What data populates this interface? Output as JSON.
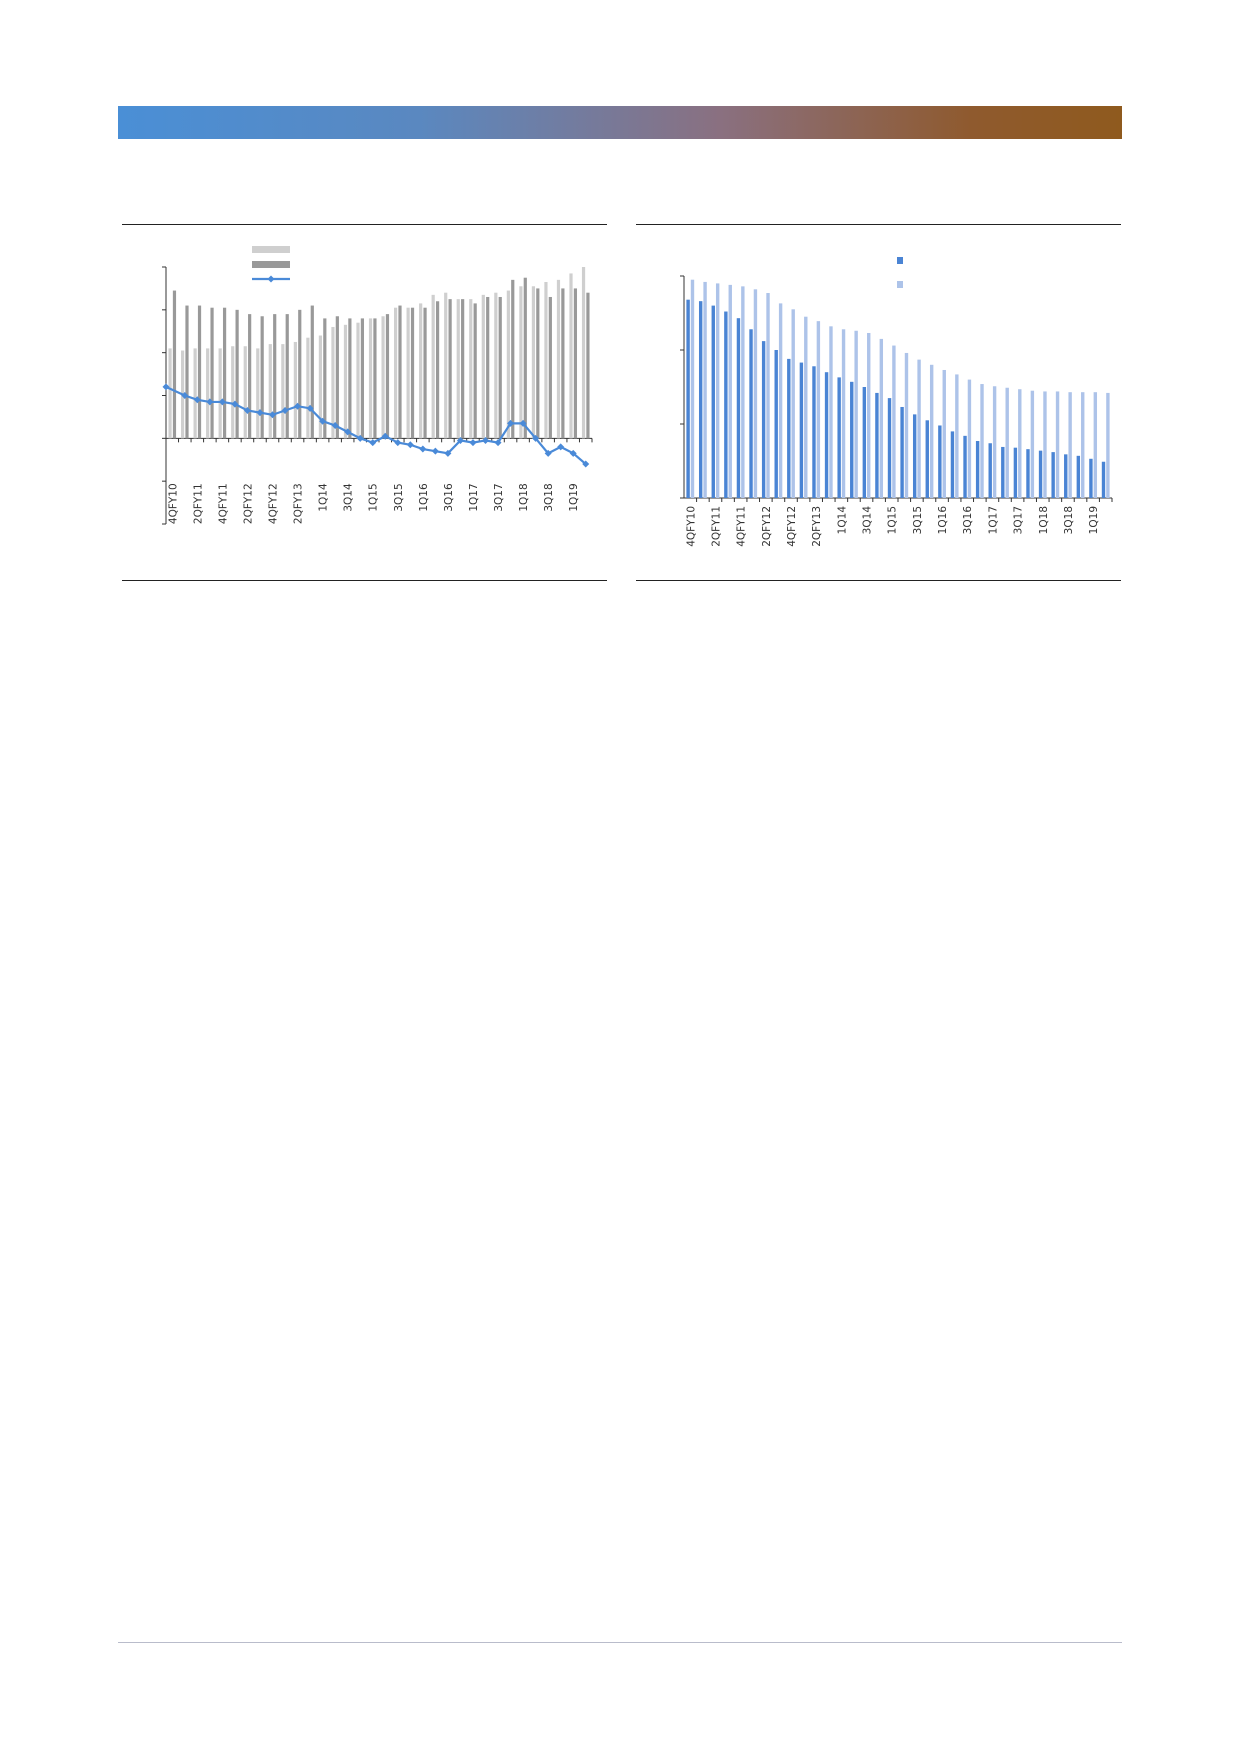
{
  "colors": {
    "band_start": "#4a8fd6",
    "band_end": "#8f5a1e",
    "light_gray": "#cfcfcf",
    "dark_gray": "#999999",
    "line_blue": "#4a8ad8",
    "dark_blue": "#4a84d4",
    "light_blue": "#adc3e9"
  },
  "chart_data": [
    {
      "type": "bar",
      "title": "",
      "xlabel": "",
      "ylabel": "",
      "legend": "top-left",
      "ylim": [
        -4,
        8
      ],
      "y_ticks": [
        -4,
        -2,
        0,
        2,
        4,
        6,
        8
      ],
      "categories": [
        "4QFY10",
        "1QFY11",
        "2QFY11",
        "3QFY11",
        "4QFY11",
        "1QFY12",
        "2QFY12",
        "3QFY12",
        "4QFY12",
        "1QFY13",
        "2QFY13",
        "3QFY13",
        "1Q14",
        "2Q14",
        "3Q14",
        "4Q14",
        "1Q15",
        "2Q15",
        "3Q15",
        "4Q15",
        "1Q16",
        "2Q16",
        "3Q16",
        "4Q16",
        "1Q17",
        "2Q17",
        "3Q17",
        "4Q17",
        "1Q18",
        "2Q18",
        "3Q18",
        "4Q18",
        "1Q19",
        "2Q19"
      ],
      "tick_labels": [
        "4QFY10",
        "",
        "2QFY11",
        "",
        "4QFY11",
        "",
        "2QFY12",
        "",
        "4QFY12",
        "",
        "2QFY13",
        "",
        "1Q14",
        "",
        "3Q14",
        "",
        "1Q15",
        "",
        "3Q15",
        "",
        "1Q16",
        "",
        "3Q16",
        "",
        "1Q17",
        "",
        "3Q17",
        "",
        "1Q18",
        "",
        "3Q18",
        "",
        "1Q19",
        ""
      ],
      "series": [
        {
          "name": "",
          "kind": "bar",
          "color": "light_gray",
          "values": [
            4.2,
            4.1,
            4.2,
            4.2,
            4.2,
            4.3,
            4.3,
            4.2,
            4.4,
            4.4,
            4.5,
            4.7,
            4.8,
            5.2,
            5.3,
            5.4,
            5.6,
            5.7,
            6.1,
            6.1,
            6.3,
            6.7,
            6.8,
            6.5,
            6.5,
            6.7,
            6.8,
            6.9,
            7.1,
            7.1,
            7.3,
            7.4,
            7.7,
            8.0
          ]
        },
        {
          "name": "",
          "kind": "bar",
          "color": "dark_gray",
          "values": [
            6.9,
            6.2,
            6.2,
            6.1,
            6.1,
            6.0,
            5.8,
            5.7,
            5.8,
            5.8,
            6.0,
            6.2,
            5.6,
            5.7,
            5.6,
            5.6,
            5.6,
            5.8,
            6.2,
            6.1,
            6.1,
            6.4,
            6.5,
            6.5,
            6.3,
            6.6,
            6.6,
            7.4,
            7.5,
            7.0,
            6.6,
            7.0,
            7.0,
            6.8
          ]
        },
        {
          "name": "",
          "kind": "line",
          "color": "line_blue",
          "values": [
            2.4,
            2.0,
            1.8,
            1.7,
            1.7,
            1.6,
            1.3,
            1.2,
            1.1,
            1.3,
            1.5,
            1.4,
            0.8,
            0.6,
            0.3,
            0.0,
            -0.2,
            0.1,
            -0.2,
            -0.3,
            -0.5,
            -0.6,
            -0.7,
            -0.1,
            -0.2,
            -0.1,
            -0.2,
            0.7,
            0.7,
            0.0,
            -0.7,
            -0.4,
            -0.7,
            -1.2
          ]
        }
      ]
    },
    {
      "type": "bar",
      "title": "",
      "xlabel": "",
      "ylabel": "",
      "legend": "top-right",
      "ylim": [
        0,
        3
      ],
      "y_ticks": [
        0,
        1,
        2,
        3
      ],
      "categories": [
        "4QFY10",
        "1QFY11",
        "2QFY11",
        "3QFY11",
        "4QFY11",
        "1QFY12",
        "2QFY12",
        "3QFY12",
        "4QFY12",
        "1QFY13",
        "2QFY13",
        "3QFY13",
        "1Q14",
        "2Q14",
        "3Q14",
        "4Q14",
        "1Q15",
        "2Q15",
        "3Q15",
        "4Q15",
        "1Q16",
        "2Q16",
        "3Q16",
        "4Q16",
        "1Q17",
        "2Q17",
        "3Q17",
        "4Q17",
        "1Q18",
        "2Q18",
        "3Q18",
        "4Q18",
        "1Q19",
        "2Q19"
      ],
      "tick_labels": [
        "4QFY10",
        "",
        "2QFY11",
        "",
        "4QFY11",
        "",
        "2QFY12",
        "",
        "4QFY12",
        "",
        "2QFY13",
        "",
        "1Q14",
        "",
        "3Q14",
        "",
        "1Q15",
        "",
        "3Q15",
        "",
        "1Q16",
        "",
        "3Q16",
        "",
        "1Q17",
        "",
        "3Q17",
        "",
        "1Q18",
        "",
        "3Q18",
        "",
        "1Q19",
        ""
      ],
      "series": [
        {
          "name": "",
          "color": "dark_blue",
          "values": [
            2.68,
            2.66,
            2.6,
            2.52,
            2.43,
            2.28,
            2.12,
            2.0,
            1.88,
            1.83,
            1.78,
            1.7,
            1.63,
            1.57,
            1.5,
            1.42,
            1.35,
            1.23,
            1.13,
            1.05,
            0.98,
            0.9,
            0.84,
            0.77,
            0.74,
            0.69,
            0.68,
            0.66,
            0.64,
            0.62,
            0.59,
            0.57,
            0.53,
            0.49
          ]
        },
        {
          "name": "",
          "color": "light_blue",
          "values": [
            2.95,
            2.92,
            2.9,
            2.88,
            2.86,
            2.82,
            2.77,
            2.63,
            2.55,
            2.45,
            2.39,
            2.32,
            2.28,
            2.26,
            2.23,
            2.15,
            2.06,
            1.96,
            1.87,
            1.8,
            1.73,
            1.67,
            1.6,
            1.54,
            1.51,
            1.49,
            1.47,
            1.45,
            1.44,
            1.44,
            1.43,
            1.43,
            1.43,
            1.42
          ]
        }
      ]
    }
  ]
}
